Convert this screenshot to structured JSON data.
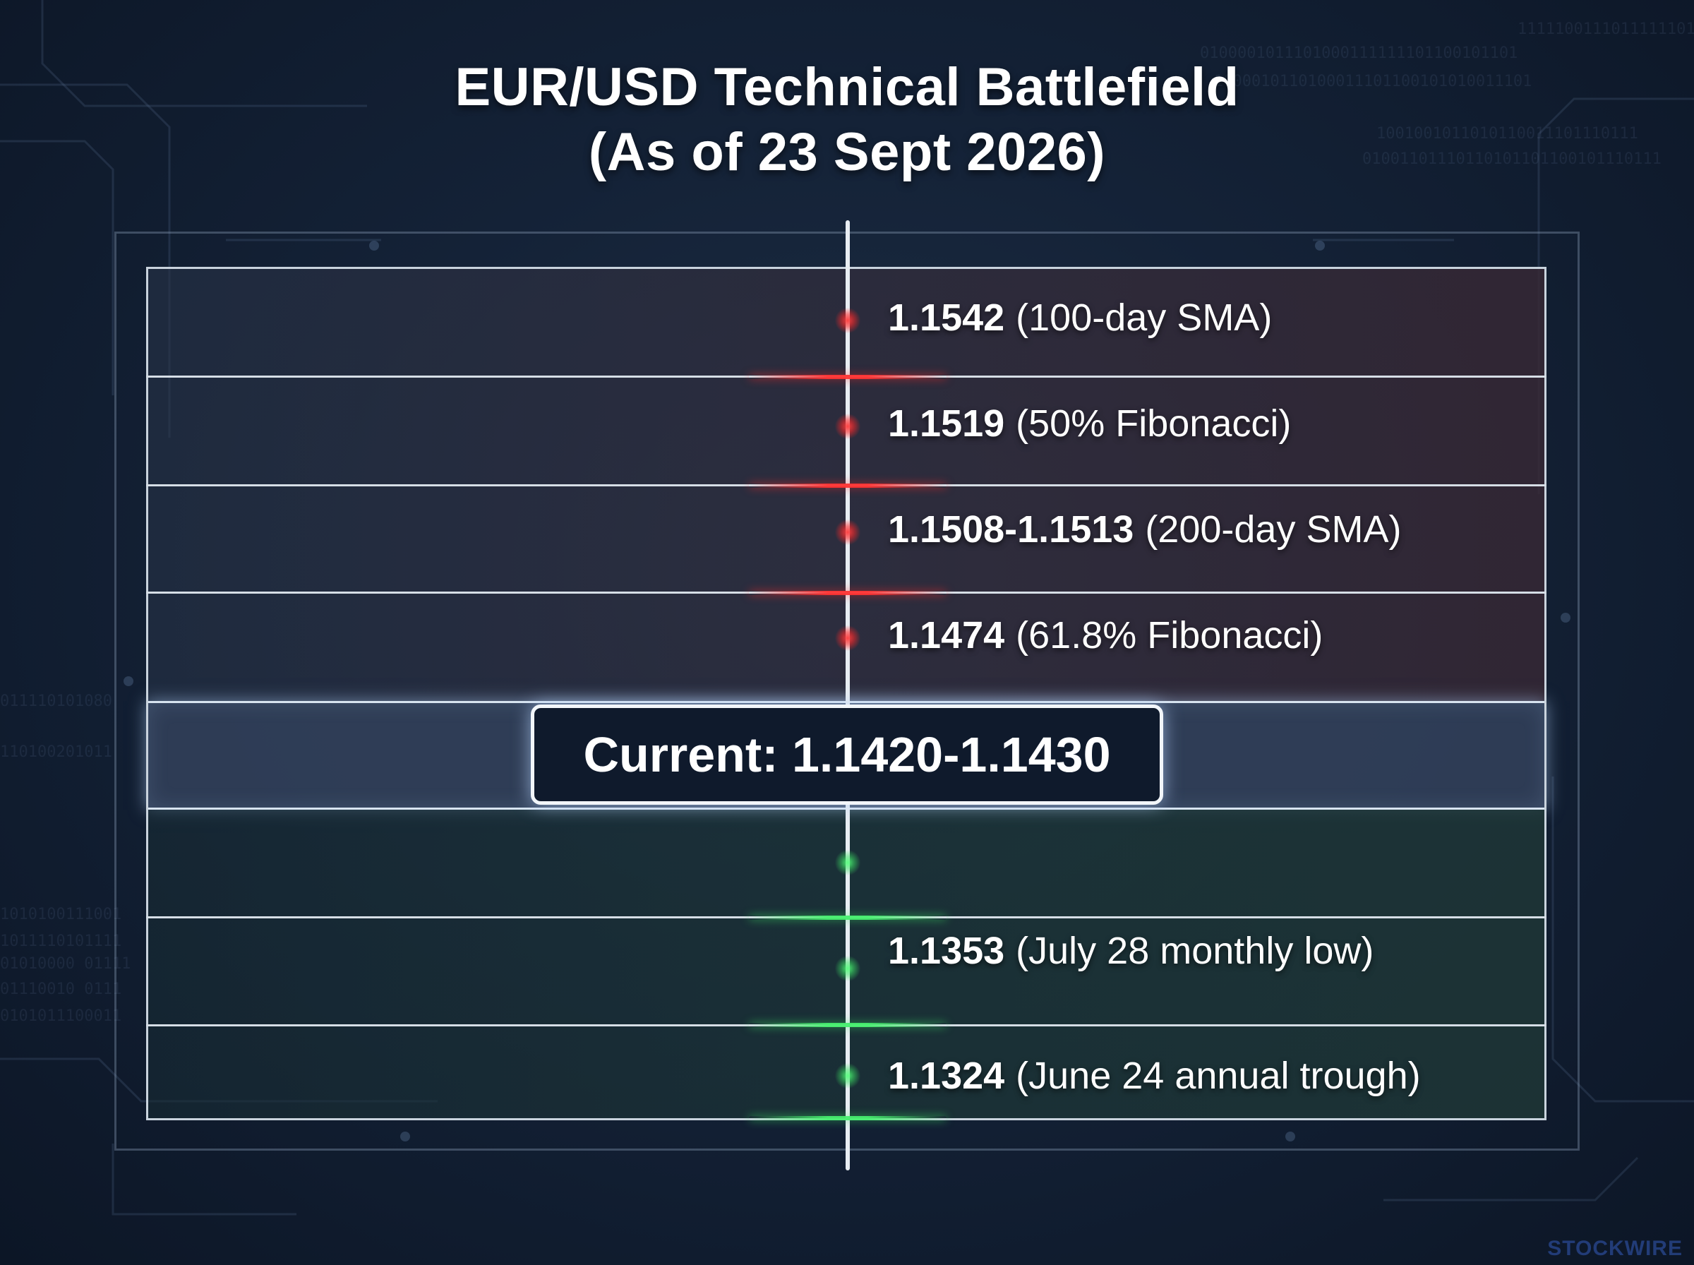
{
  "title": {
    "line1": "EUR/USD Technical Battlefield",
    "line2": "(As of 23 Sept 2026)"
  },
  "current": {
    "label": "Current: 1.1420-1.1430",
    "range": [
      1.142,
      1.143
    ]
  },
  "resistance_levels": [
    {
      "value": "1.1542",
      "note": "(100-day SMA)"
    },
    {
      "value": "1.1519",
      "note": "(50% Fibonacci)"
    },
    {
      "value": "1.1508-1.1513",
      "note": "(200-day SMA)"
    },
    {
      "value": "1.1474",
      "note": "(61.8% Fibonacci)"
    }
  ],
  "support_levels": [
    {
      "value": "",
      "note": ""
    },
    {
      "value": "1.1353",
      "note": "(July 28 monthly low)"
    },
    {
      "value": "1.1324",
      "note": "(June 24 annual trough)"
    }
  ],
  "colors": {
    "resistance": "#ff3333",
    "support": "#46f06e",
    "background": "#142237",
    "line": "#d6dee6"
  },
  "watermark": "STOCKWIRE"
}
